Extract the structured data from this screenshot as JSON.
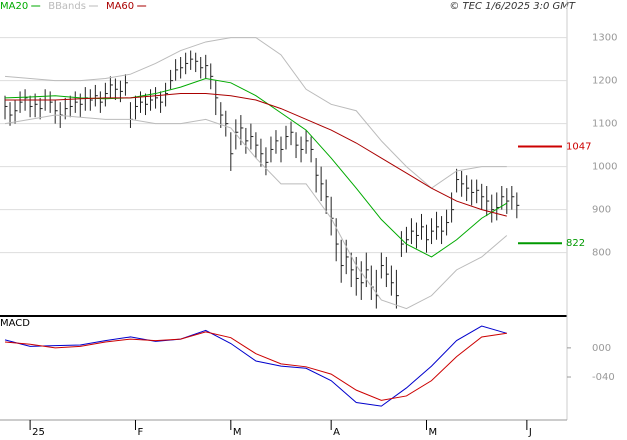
{
  "chart_data": [
    {
      "type": "ohlc",
      "source": "© TEC 1/6/2025 3:0 GMT",
      "xlim": [
        0,
        113
      ],
      "ylim": [
        655,
        1355
      ],
      "yticks": [
        800,
        900,
        1000,
        1100,
        1200,
        1300
      ],
      "grid": true,
      "bar_color": "#222222",
      "x": [
        1,
        2,
        3,
        4,
        5,
        6,
        7,
        8,
        9,
        10,
        11,
        12,
        13,
        14,
        15,
        16,
        17,
        18,
        19,
        20,
        21,
        22,
        23,
        24,
        25,
        26,
        27,
        28,
        29,
        30,
        31,
        32,
        33,
        34,
        35,
        36,
        37,
        38,
        39,
        40,
        41,
        42,
        43,
        44,
        45,
        46,
        47,
        48,
        49,
        50,
        51,
        52,
        53,
        54,
        55,
        56,
        57,
        58,
        59,
        60,
        61,
        62,
        63,
        64,
        65,
        66,
        67,
        68,
        69,
        70,
        71,
        72,
        73,
        74,
        75,
        76,
        77,
        78,
        79,
        80,
        81,
        82,
        83,
        84,
        85,
        86,
        87,
        88,
        89,
        90,
        91,
        92,
        93,
        94,
        95,
        96,
        97,
        98,
        99,
        100,
        101,
        102,
        103
      ],
      "high": [
        1165,
        1150,
        1155,
        1175,
        1180,
        1165,
        1170,
        1160,
        1180,
        1175,
        1155,
        1150,
        1160,
        1165,
        1175,
        1170,
        1185,
        1180,
        1190,
        1175,
        1195,
        1210,
        1205,
        1200,
        1215,
        1150,
        1165,
        1175,
        1170,
        1180,
        1185,
        1175,
        1195,
        1225,
        1250,
        1255,
        1265,
        1270,
        1265,
        1255,
        1260,
        1240,
        1200,
        1150,
        1130,
        1080,
        1110,
        1120,
        1090,
        1100,
        1080,
        1065,
        1045,
        1070,
        1085,
        1070,
        1095,
        1105,
        1080,
        1070,
        1085,
        1070,
        1020,
        1000,
        970,
        930,
        880,
        830,
        830,
        800,
        790,
        780,
        800,
        770,
        760,
        800,
        790,
        770,
        760,
        850,
        860,
        880,
        870,
        890,
        865,
        880,
        895,
        885,
        900,
        940,
        995,
        990,
        980,
        970,
        970,
        960,
        955,
        935,
        940,
        955,
        950,
        955,
        940
      ],
      "low": [
        1110,
        1095,
        1100,
        1125,
        1130,
        1115,
        1115,
        1110,
        1130,
        1125,
        1100,
        1090,
        1110,
        1115,
        1125,
        1115,
        1130,
        1130,
        1140,
        1125,
        1140,
        1160,
        1155,
        1150,
        1165,
        1090,
        1110,
        1125,
        1120,
        1130,
        1135,
        1125,
        1140,
        1180,
        1200,
        1205,
        1215,
        1225,
        1220,
        1205,
        1205,
        1180,
        1120,
        1090,
        1070,
        990,
        1040,
        1050,
        1030,
        1040,
        1020,
        1000,
        980,
        1010,
        1030,
        1010,
        1040,
        1050,
        1020,
        1010,
        1030,
        1010,
        940,
        920,
        890,
        840,
        780,
        730,
        750,
        720,
        700,
        690,
        720,
        690,
        670,
        740,
        720,
        700,
        670,
        790,
        800,
        820,
        810,
        830,
        800,
        820,
        830,
        820,
        840,
        870,
        940,
        930,
        920,
        910,
        915,
        900,
        885,
        870,
        875,
        900,
        890,
        900,
        880
      ],
      "close": [
        1140,
        1120,
        1130,
        1150,
        1160,
        1140,
        1145,
        1135,
        1155,
        1150,
        1130,
        1120,
        1135,
        1140,
        1150,
        1145,
        1160,
        1155,
        1165,
        1150,
        1170,
        1190,
        1180,
        1175,
        1195,
        1110,
        1140,
        1150,
        1145,
        1155,
        1160,
        1150,
        1170,
        1200,
        1225,
        1230,
        1240,
        1250,
        1245,
        1230,
        1235,
        1210,
        1160,
        1120,
        1100,
        1030,
        1080,
        1090,
        1060,
        1070,
        1050,
        1030,
        1010,
        1040,
        1060,
        1040,
        1070,
        1080,
        1050,
        1040,
        1060,
        1040,
        980,
        960,
        930,
        880,
        820,
        770,
        790,
        760,
        740,
        730,
        760,
        720,
        700,
        770,
        750,
        730,
        700,
        820,
        830,
        850,
        840,
        860,
        830,
        850,
        860,
        850,
        870,
        900,
        970,
        960,
        950,
        940,
        945,
        930,
        920,
        900,
        905,
        930,
        920,
        930,
        910
      ],
      "lines": [
        {
          "name": "MA20",
          "color": "#00aa00",
          "x": [
            1,
            6,
            11,
            16,
            21,
            26,
            31,
            36,
            41,
            46,
            51,
            56,
            61,
            66,
            71,
            76,
            81,
            86,
            91,
            96,
            101
          ],
          "values": [
            1160,
            1162,
            1165,
            1160,
            1158,
            1160,
            1170,
            1185,
            1205,
            1195,
            1165,
            1125,
            1085,
            1020,
            950,
            877,
            820,
            790,
            830,
            880,
            915
          ]
        },
        {
          "name": "BBands",
          "color": "#bbbbbb",
          "x": [
            1,
            6,
            11,
            16,
            21,
            26,
            31,
            36,
            41,
            46,
            51,
            56,
            61,
            66,
            71,
            76,
            81,
            86,
            91,
            96,
            101
          ],
          "values": [
            1210,
            1205,
            1200,
            1200,
            1205,
            1215,
            1240,
            1270,
            1290,
            1300,
            1300,
            1260,
            1180,
            1145,
            1130,
            1060,
            1000,
            950,
            990,
            1000,
            1000
          ]
        },
        {
          "name": "MA60",
          "color": "#aa0000",
          "x": [
            1,
            6,
            11,
            16,
            21,
            26,
            31,
            36,
            41,
            46,
            51,
            56,
            61,
            66,
            71,
            76,
            81,
            86,
            91,
            96,
            101
          ],
          "values": [
            1155,
            1155,
            1155,
            1158,
            1160,
            1160,
            1165,
            1170,
            1170,
            1165,
            1155,
            1135,
            1110,
            1085,
            1055,
            1020,
            985,
            950,
            920,
            900,
            885
          ]
        },
        {
          "color": "#bbbbbb",
          "x": [
            1,
            6,
            11,
            16,
            21,
            26,
            31,
            36,
            41,
            46,
            51,
            56,
            61,
            66,
            71,
            76,
            81,
            86,
            91,
            96,
            101
          ],
          "values": [
            1100,
            1110,
            1120,
            1115,
            1110,
            1110,
            1100,
            1100,
            1110,
            1090,
            1020,
            960,
            960,
            880,
            770,
            690,
            670,
            700,
            760,
            790,
            840
          ]
        }
      ],
      "price_labels": [
        {
          "value": 1047,
          "color": "#cc0000"
        },
        {
          "value": 822,
          "color": "#009900"
        }
      ]
    },
    {
      "type": "line",
      "title": "MACD",
      "xlim": [
        0,
        113
      ],
      "ylim": [
        -99,
        41
      ],
      "yticks": [
        {
          "value": 0,
          "label": "000"
        },
        {
          "value": -40,
          "label": "-040"
        }
      ],
      "xticks": [
        {
          "value": 6,
          "label": "25"
        },
        {
          "value": 27,
          "label": "F"
        },
        {
          "value": 46,
          "label": "M"
        },
        {
          "value": 66,
          "label": "A"
        },
        {
          "value": 85,
          "label": "M"
        },
        {
          "value": 105,
          "label": "J"
        }
      ],
      "series": [
        {
          "color": "#0000cc",
          "x": [
            1,
            6,
            11,
            16,
            21,
            26,
            31,
            36,
            41,
            46,
            51,
            56,
            61,
            66,
            71,
            76,
            81,
            86,
            91,
            96,
            101
          ],
          "values": [
            11,
            2,
            3,
            4,
            10,
            15,
            9,
            12,
            24,
            6,
            -18,
            -25,
            -28,
            -45,
            -75,
            -80,
            -55,
            -25,
            10,
            30,
            20
          ]
        },
        {
          "color": "#cc0000",
          "x": [
            1,
            6,
            11,
            16,
            21,
            26,
            31,
            36,
            41,
            46,
            51,
            56,
            61,
            66,
            71,
            76,
            81,
            86,
            91,
            96,
            101
          ],
          "values": [
            8,
            5,
            0,
            2,
            8,
            12,
            10,
            12,
            22,
            14,
            -8,
            -22,
            -26,
            -36,
            -58,
            -72,
            -66,
            -45,
            -12,
            15,
            20
          ]
        }
      ]
    }
  ]
}
